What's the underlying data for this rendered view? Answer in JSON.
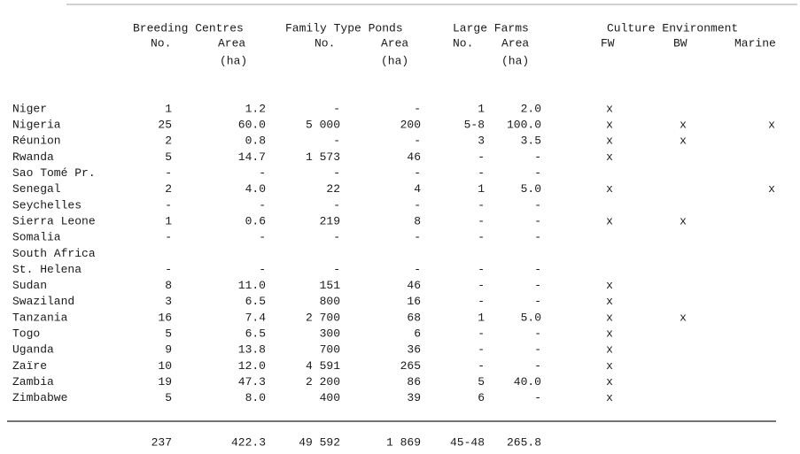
{
  "header": {
    "groups": [
      "Breeding Centres",
      "Family Type Ponds",
      "Large Farms",
      "Culture Environment"
    ],
    "subheads": [
      [
        "No.",
        "Area",
        "(ha)"
      ],
      [
        "No.",
        "Area",
        "(ha)"
      ],
      [
        "No.",
        "Area",
        "(ha)"
      ],
      [
        "FW",
        "BW",
        "Marine"
      ]
    ]
  },
  "table": {
    "rows": [
      [
        "Niger",
        "1",
        "1.2",
        "-",
        "-",
        "1",
        "2.0",
        "x",
        null,
        null
      ],
      [
        "Nigeria",
        "25",
        "60.0",
        "5 000",
        "200",
        "5-8",
        "100.0",
        "x",
        "x",
        "x"
      ],
      [
        "Réunion",
        "2",
        "0.8",
        "-",
        "-",
        "3",
        "3.5",
        "x",
        "x",
        null
      ],
      [
        "Rwanda",
        "5",
        "14.7",
        "1 573",
        "46",
        "-",
        "-",
        "x",
        null,
        null
      ],
      [
        "Sao Tomé Pr.",
        "-",
        "-",
        "-",
        "-",
        "-",
        "-",
        null,
        null,
        null
      ],
      [
        "Senegal",
        "2",
        "4.0",
        "22",
        "4",
        "1",
        "5.0",
        "x",
        null,
        "x"
      ],
      [
        "Seychelles",
        "-",
        "-",
        "-",
        "-",
        "-",
        "-",
        null,
        null,
        null
      ],
      [
        "Sierra Leone",
        "1",
        "0.6",
        "219",
        "8",
        "-",
        "-",
        "x",
        "x",
        null
      ],
      [
        "Somalia",
        "-",
        "-",
        "-",
        "-",
        "-",
        "-",
        null,
        null,
        null
      ],
      [
        "South Africa",
        null,
        null,
        null,
        null,
        null,
        null,
        null,
        null,
        null
      ],
      [
        "St. Helena",
        "-",
        "-",
        "-",
        "-",
        "-",
        "-",
        null,
        null,
        null
      ],
      [
        "Sudan",
        "8",
        "11.0",
        "151",
        "46",
        "-",
        "-",
        "x",
        null,
        null
      ],
      [
        "Swaziland",
        "3",
        "6.5",
        "800",
        "16",
        "-",
        "-",
        "x",
        null,
        null
      ],
      [
        "Tanzania",
        "16",
        "7.4",
        "2 700",
        "68",
        "1",
        "5.0",
        "x",
        "x",
        null
      ],
      [
        "Togo",
        "5",
        "6.5",
        "300",
        "6",
        "-",
        "-",
        "x",
        null,
        null
      ],
      [
        "Uganda",
        "9",
        "13.8",
        "700",
        "36",
        "-",
        "-",
        "x",
        null,
        null
      ],
      [
        "Zaïre",
        "10",
        "12.0",
        "4 591",
        "265",
        "-",
        "-",
        "x",
        null,
        null
      ],
      [
        "Zambia",
        "19",
        "47.3",
        "2 200",
        "86",
        "5",
        "40.0",
        "x",
        null,
        null
      ],
      [
        "Zimbabwe",
        "5",
        "8.0",
        "400",
        "39",
        "6",
        "-",
        "x",
        null,
        null
      ]
    ],
    "totals": [
      "237",
      "422.3",
      "49 592",
      "1 869",
      "45-48",
      "265.8"
    ]
  }
}
